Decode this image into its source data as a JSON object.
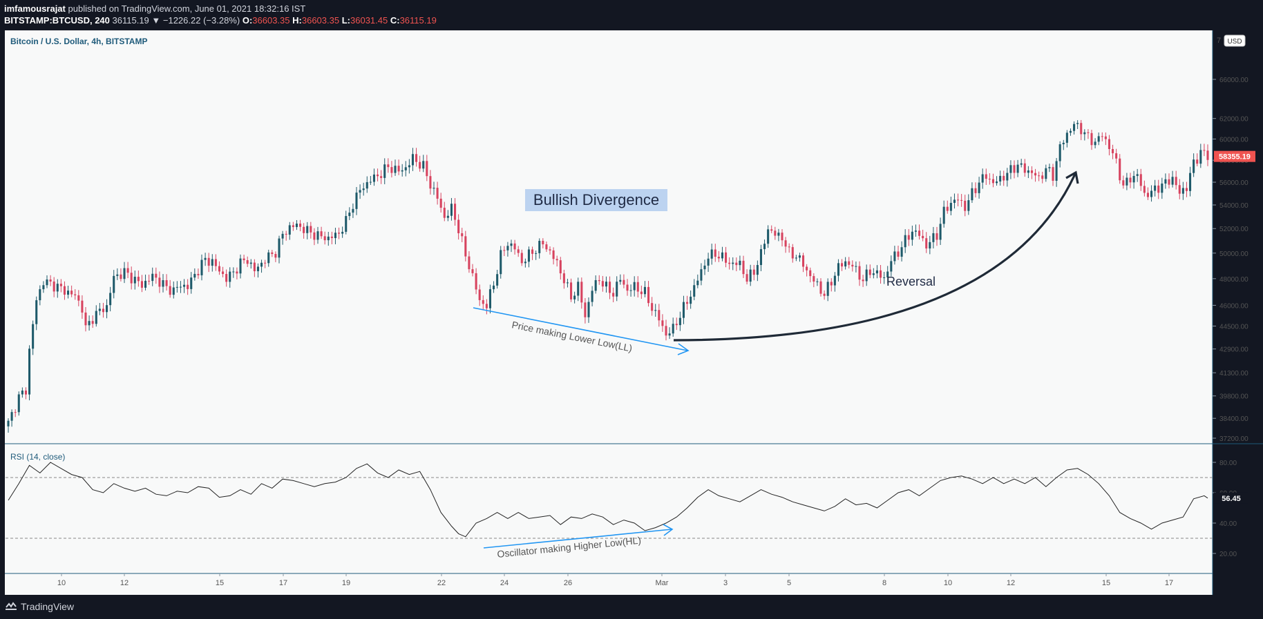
{
  "header": {
    "publisher": "imfamousrajat",
    "published_text": "published on TradingView.com, June 01, 2021 18:32:16 IST",
    "symbol": "BITSTAMP:BTCUSD, 240",
    "last": "36115.19",
    "change": "▼ −1226.22 (−3.28%)",
    "o_label": "O:",
    "o_val": "36603.35",
    "h_label": "H:",
    "h_val": "36603.35",
    "l_label": "L:",
    "l_val": "36031.45",
    "c_label": "C:",
    "c_val": "36115.19"
  },
  "footer": {
    "brand": "TradingView",
    "logo_icon": "tradingview-logo-icon"
  },
  "chart_data": [
    {
      "type": "candlestick",
      "title": "Bitcoin / U.S. Dollar, 4h, BITSTAMP",
      "currency": "USD",
      "y_scale": "log",
      "ylim": [
        36700,
        71000
      ],
      "yticks": [
        37200,
        38400,
        39800,
        41300,
        42900,
        44500,
        46000,
        48000,
        50000,
        52000,
        54000,
        56000,
        58000,
        60000,
        62000,
        66000
      ],
      "ytick_labels": [
        "37200.00",
        "38400.00",
        "39800.00",
        "41300.00",
        "42900.00",
        "44500.00",
        "46000.00",
        "48000.00",
        "50000.00",
        "52000.00",
        "54000.00",
        "56000.00",
        "58000.00",
        "60000.00",
        "62000.00",
        "66000.00"
      ],
      "top_tick_partial": "7",
      "last_price_label": "58355.19",
      "xticks": [
        "10",
        "12",
        "15",
        "17",
        "19",
        "22",
        "24",
        "26",
        "Mar",
        "3",
        "5",
        "8",
        "10",
        "12",
        "15",
        "17"
      ],
      "close_path": [
        [
          0,
          38100
        ],
        [
          3,
          39700
        ],
        [
          5,
          40200
        ],
        [
          6,
          42800
        ],
        [
          8,
          46400
        ],
        [
          10,
          47800
        ],
        [
          13,
          47500
        ],
        [
          16,
          47100
        ],
        [
          19,
          46700
        ],
        [
          21,
          45800
        ],
        [
          22,
          44300
        ],
        [
          24,
          45100
        ],
        [
          26,
          45600
        ],
        [
          28,
          45900
        ],
        [
          30,
          48100
        ],
        [
          33,
          48500
        ],
        [
          36,
          47900
        ],
        [
          38,
          47500
        ],
        [
          41,
          48200
        ],
        [
          43,
          47800
        ],
        [
          45,
          47300
        ],
        [
          47,
          47100
        ],
        [
          49,
          47500
        ],
        [
          51,
          47400
        ],
        [
          53,
          48300
        ],
        [
          56,
          49500
        ],
        [
          58,
          49300
        ],
        [
          60,
          48600
        ],
        [
          62,
          48000
        ],
        [
          64,
          48500
        ],
        [
          66,
          49200
        ],
        [
          68,
          49500
        ],
        [
          70,
          48600
        ],
        [
          73,
          49500
        ],
        [
          76,
          50100
        ],
        [
          78,
          51500
        ],
        [
          80,
          52100
        ],
        [
          82,
          52300
        ],
        [
          85,
          51800
        ],
        [
          88,
          51400
        ],
        [
          91,
          51200
        ],
        [
          94,
          51600
        ],
        [
          96,
          52600
        ],
        [
          98,
          54100
        ],
        [
          100,
          55300
        ],
        [
          103,
          56200
        ],
        [
          106,
          56800
        ],
        [
          108,
          57400
        ],
        [
          111,
          57000
        ],
        [
          113,
          57300
        ],
        [
          115,
          58200
        ],
        [
          118,
          57400
        ],
        [
          120,
          55800
        ],
        [
          122,
          54600
        ],
        [
          124,
          52900
        ],
        [
          126,
          53700
        ],
        [
          128,
          52000
        ],
        [
          130,
          49800
        ],
        [
          132,
          48200
        ],
        [
          134,
          46300
        ],
        [
          136,
          46000
        ],
        [
          138,
          47600
        ],
        [
          140,
          49800
        ],
        [
          142,
          50800
        ],
        [
          144,
          50400
        ],
        [
          146,
          49300
        ],
        [
          149,
          50100
        ],
        [
          152,
          50800
        ],
        [
          154,
          50100
        ],
        [
          156,
          49200
        ],
        [
          158,
          47900
        ],
        [
          160,
          46600
        ],
        [
          162,
          47400
        ],
        [
          164,
          45200
        ],
        [
          166,
          47200
        ],
        [
          168,
          48000
        ],
        [
          170,
          47300
        ],
        [
          172,
          46900
        ],
        [
          174,
          48000
        ],
        [
          176,
          47100
        ],
        [
          178,
          47400
        ],
        [
          181,
          46900
        ],
        [
          183,
          45800
        ],
        [
          185,
          45000
        ],
        [
          187,
          43900
        ],
        [
          189,
          44300
        ],
        [
          191,
          45300
        ],
        [
          193,
          46300
        ],
        [
          195,
          47300
        ],
        [
          197,
          48600
        ],
        [
          199,
          49700
        ],
        [
          201,
          50000
        ],
        [
          203,
          49600
        ],
        [
          206,
          49100
        ],
        [
          208,
          49200
        ],
        [
          210,
          47900
        ],
        [
          212,
          48600
        ],
        [
          214,
          49900
        ],
        [
          216,
          52000
        ],
        [
          218,
          51500
        ],
        [
          220,
          51300
        ],
        [
          222,
          50000
        ],
        [
          224,
          49800
        ],
        [
          226,
          49100
        ],
        [
          228,
          48200
        ],
        [
          230,
          47500
        ],
        [
          232,
          46800
        ],
        [
          234,
          47800
        ],
        [
          236,
          48900
        ],
        [
          238,
          49300
        ],
        [
          240,
          49000
        ],
        [
          243,
          47900
        ],
        [
          245,
          48600
        ],
        [
          247,
          48400
        ],
        [
          249,
          48000
        ],
        [
          251,
          49400
        ],
        [
          253,
          50100
        ],
        [
          255,
          51000
        ],
        [
          257,
          51800
        ],
        [
          259,
          51500
        ],
        [
          261,
          50600
        ],
        [
          264,
          51500
        ],
        [
          266,
          53400
        ],
        [
          268,
          54200
        ],
        [
          270,
          54500
        ],
        [
          272,
          53800
        ],
        [
          274,
          55000
        ],
        [
          276,
          56000
        ],
        [
          278,
          56600
        ],
        [
          280,
          55900
        ],
        [
          282,
          56300
        ],
        [
          284,
          56800
        ],
        [
          287,
          57600
        ],
        [
          289,
          57100
        ],
        [
          291,
          56900
        ],
        [
          293,
          56300
        ],
        [
          295,
          57200
        ],
        [
          297,
          56600
        ],
        [
          299,
          59200
        ],
        [
          301,
          60500
        ],
        [
          303,
          61400
        ],
        [
          305,
          61000
        ],
        [
          307,
          60100
        ],
        [
          309,
          59700
        ],
        [
          311,
          60400
        ],
        [
          313,
          59300
        ],
        [
          315,
          57800
        ],
        [
          317,
          55600
        ],
        [
          319,
          56400
        ],
        [
          321,
          56600
        ],
        [
          323,
          54900
        ],
        [
          325,
          55100
        ],
        [
          327,
          55600
        ],
        [
          329,
          55900
        ],
        [
          331,
          56400
        ],
        [
          333,
          55000
        ],
        [
          335,
          55600
        ],
        [
          337,
          57700
        ],
        [
          339,
          58800
        ],
        [
          341,
          58355
        ]
      ],
      "annotations": [
        "Bullish Divergence",
        "Price making Lower Low(LL)",
        "Reversal"
      ]
    },
    {
      "type": "line",
      "title": "RSI (14, close)",
      "ylim": [
        10,
        90
      ],
      "yticks": [
        20,
        40,
        60,
        80
      ],
      "ytick_labels": [
        "20.00",
        "40.00",
        "60.00",
        "80.00"
      ],
      "bands": [
        30,
        70
      ],
      "last_value_label": "56.45",
      "values": [
        [
          0,
          55
        ],
        [
          3,
          66
        ],
        [
          6,
          78
        ],
        [
          9,
          73
        ],
        [
          12,
          80
        ],
        [
          15,
          76
        ],
        [
          18,
          72
        ],
        [
          21,
          70
        ],
        [
          24,
          62
        ],
        [
          27,
          60
        ],
        [
          30,
          66
        ],
        [
          33,
          63
        ],
        [
          36,
          61
        ],
        [
          39,
          63
        ],
        [
          42,
          59
        ],
        [
          45,
          58
        ],
        [
          48,
          61
        ],
        [
          51,
          60
        ],
        [
          54,
          64
        ],
        [
          57,
          63
        ],
        [
          60,
          57
        ],
        [
          63,
          58
        ],
        [
          66,
          62
        ],
        [
          69,
          59
        ],
        [
          72,
          66
        ],
        [
          75,
          63
        ],
        [
          78,
          69
        ],
        [
          81,
          68
        ],
        [
          84,
          66
        ],
        [
          87,
          64
        ],
        [
          90,
          66
        ],
        [
          93,
          67
        ],
        [
          96,
          70
        ],
        [
          99,
          76
        ],
        [
          102,
          79
        ],
        [
          105,
          73
        ],
        [
          108,
          70
        ],
        [
          111,
          75
        ],
        [
          114,
          72
        ],
        [
          117,
          74
        ],
        [
          120,
          62
        ],
        [
          123,
          47
        ],
        [
          126,
          38
        ],
        [
          128,
          33
        ],
        [
          130,
          31
        ],
        [
          133,
          40
        ],
        [
          136,
          43
        ],
        [
          139,
          47
        ],
        [
          142,
          43
        ],
        [
          145,
          47
        ],
        [
          148,
          43
        ],
        [
          151,
          44
        ],
        [
          154,
          45
        ],
        [
          157,
          39
        ],
        [
          160,
          44
        ],
        [
          163,
          43
        ],
        [
          166,
          46
        ],
        [
          169,
          44
        ],
        [
          172,
          39
        ],
        [
          175,
          42
        ],
        [
          178,
          40
        ],
        [
          181,
          35
        ],
        [
          184,
          37
        ],
        [
          187,
          40
        ],
        [
          190,
          44
        ],
        [
          193,
          50
        ],
        [
          196,
          57
        ],
        [
          199,
          62
        ],
        [
          202,
          58
        ],
        [
          205,
          56
        ],
        [
          208,
          54
        ],
        [
          211,
          58
        ],
        [
          214,
          62
        ],
        [
          217,
          59
        ],
        [
          220,
          57
        ],
        [
          223,
          54
        ],
        [
          226,
          52
        ],
        [
          229,
          50
        ],
        [
          232,
          48
        ],
        [
          235,
          51
        ],
        [
          238,
          56
        ],
        [
          241,
          52
        ],
        [
          244,
          53
        ],
        [
          247,
          50
        ],
        [
          250,
          55
        ],
        [
          253,
          60
        ],
        [
          256,
          62
        ],
        [
          259,
          58
        ],
        [
          262,
          63
        ],
        [
          265,
          68
        ],
        [
          268,
          70
        ],
        [
          271,
          71
        ],
        [
          274,
          69
        ],
        [
          277,
          66
        ],
        [
          280,
          70
        ],
        [
          283,
          66
        ],
        [
          286,
          69
        ],
        [
          289,
          66
        ],
        [
          292,
          70
        ],
        [
          295,
          64
        ],
        [
          298,
          70
        ],
        [
          301,
          75
        ],
        [
          304,
          76
        ],
        [
          307,
          72
        ],
        [
          310,
          66
        ],
        [
          313,
          58
        ],
        [
          316,
          47
        ],
        [
          319,
          43
        ],
        [
          322,
          40
        ],
        [
          325,
          36
        ],
        [
          328,
          40
        ],
        [
          331,
          42
        ],
        [
          334,
          44
        ],
        [
          337,
          56
        ],
        [
          340,
          58
        ],
        [
          341,
          56.45
        ]
      ],
      "annotations": [
        "Oscillator making Higher Low(HL)"
      ]
    }
  ]
}
